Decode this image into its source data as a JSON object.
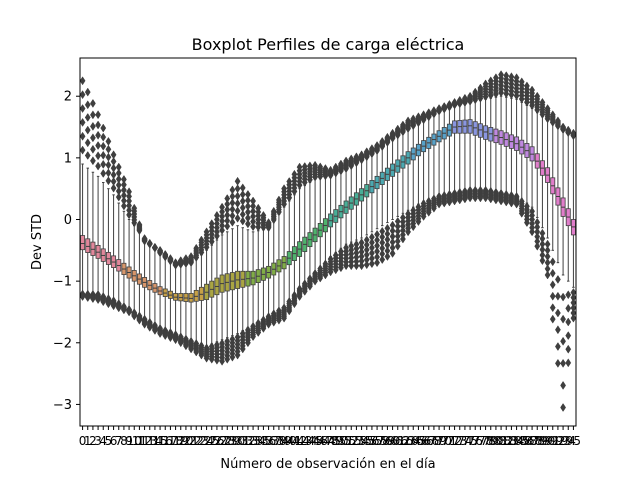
{
  "chart_data": {
    "type": "box",
    "title": "Boxplot Perfiles de carga eléctrica",
    "xlabel": "Número de observación en el día",
    "ylabel": "Dev STD",
    "x_start": 0,
    "x_end": 95,
    "ylim": [
      -3.35,
      2.62
    ],
    "yticks": [
      2,
      1,
      0,
      -1,
      -2,
      -3
    ],
    "ytick_labels": [
      "2",
      "1",
      "0",
      "−1",
      "−2",
      "−3"
    ],
    "grid": false,
    "legend": "none",
    "style": {
      "outlier_color": "#3f3f3f",
      "line_color": "#3f3f3f",
      "palette": [
        "#e1879b",
        "#d7966b",
        "#c7a147",
        "#aaa543",
        "#81ad47",
        "#4fb36d",
        "#49ae97",
        "#4ca9b1",
        "#58a2c9",
        "#8a96e0",
        "#c088e0",
        "#e07dca"
      ]
    },
    "boxes": [
      {
        "x": 0,
        "q1": -0.49,
        "median": -0.39,
        "q3": -0.26,
        "whisker_low": -1.2,
        "whisker_high": 0.9,
        "fliers_high": [
          1.9,
          2.25
        ],
        "fliers_low": [
          -1.25
        ]
      },
      {
        "x": 3,
        "q1": -0.63,
        "median": -0.53,
        "q3": -0.42,
        "whisker_low": -1.2,
        "whisker_high": 0.7,
        "fliers_high": [
          1.55,
          1.7
        ],
        "fliers_low": [
          -1.3
        ]
      },
      {
        "x": 6,
        "q1": -0.78,
        "median": -0.69,
        "q3": -0.59,
        "whisker_low": -1.3,
        "whisker_high": 0.4,
        "fliers_high": [
          1.05,
          0.8
        ],
        "fliers_low": [
          -1.4
        ]
      },
      {
        "x": 9,
        "q1": -0.95,
        "median": -0.86,
        "q3": -0.77,
        "whisker_low": -1.45,
        "whisker_high": 0.0,
        "fliers_high": [
          0.45
        ],
        "fliers_low": [
          -1.5
        ]
      },
      {
        "x": 12,
        "q1": -1.1,
        "median": -1.02,
        "q3": -0.94,
        "whisker_low": -1.6,
        "whisker_high": -0.3,
        "fliers_high": [
          -0.35
        ],
        "fliers_low": [
          -1.7
        ]
      },
      {
        "x": 15,
        "q1": -1.22,
        "median": -1.16,
        "q3": -1.09,
        "whisker_low": -1.75,
        "whisker_high": -0.55,
        "fliers_high": [
          -0.5
        ],
        "fliers_low": [
          -1.85
        ]
      },
      {
        "x": 18,
        "q1": -1.31,
        "median": -1.26,
        "q3": -1.2,
        "whisker_low": -1.85,
        "whisker_high": -0.75,
        "fliers_high": [
          -0.7
        ],
        "fliers_low": [
          -1.95
        ]
      },
      {
        "x": 21,
        "q1": -1.34,
        "median": -1.28,
        "q3": -1.2,
        "whisker_low": -1.95,
        "whisker_high": -0.72,
        "fliers_high": [
          -0.6
        ],
        "fliers_low": [
          -2.1
        ]
      },
      {
        "x": 24,
        "q1": -1.3,
        "median": -1.18,
        "q3": -1.05,
        "whisker_low": -2.05,
        "whisker_high": -0.5,
        "fliers_high": [
          -0.2
        ],
        "fliers_low": [
          -2.25
        ]
      },
      {
        "x": 27,
        "q1": -1.18,
        "median": -1.04,
        "q3": -0.9,
        "whisker_low": -1.95,
        "whisker_high": -0.25,
        "fliers_high": [
          0.2
        ],
        "fliers_low": [
          -2.3
        ]
      },
      {
        "x": 30,
        "q1": -1.12,
        "median": -0.98,
        "q3": -0.84,
        "whisker_low": -1.85,
        "whisker_high": -0.1,
        "fliers_high": [
          0.62
        ],
        "fliers_low": [
          -2.2
        ]
      },
      {
        "x": 33,
        "q1": -1.06,
        "median": -0.95,
        "q3": -0.84,
        "whisker_low": -1.7,
        "whisker_high": -0.2,
        "fliers_high": [
          0.3
        ],
        "fliers_low": [
          -1.9
        ]
      },
      {
        "x": 36,
        "q1": -0.95,
        "median": -0.86,
        "q3": -0.76,
        "whisker_low": -1.55,
        "whisker_high": -0.15,
        "fliers_high": [
          -0.05
        ],
        "fliers_low": [
          -1.7
        ]
      },
      {
        "x": 39,
        "q1": -0.8,
        "median": -0.7,
        "q3": -0.6,
        "whisker_low": -1.4,
        "whisker_high": 0.2,
        "fliers_high": [
          0.5
        ],
        "fliers_low": [
          -1.6
        ]
      },
      {
        "x": 42,
        "q1": -0.6,
        "median": -0.48,
        "q3": -0.36,
        "whisker_low": -1.1,
        "whisker_high": 0.5,
        "fliers_high": [
          0.85
        ],
        "fliers_low": [
          -1.25
        ]
      },
      {
        "x": 45,
        "q1": -0.36,
        "median": -0.25,
        "q3": -0.14,
        "whisker_low": -0.85,
        "whisker_high": 0.65,
        "fliers_high": [
          0.88
        ],
        "fliers_low": [
          -1.0
        ]
      },
      {
        "x": 48,
        "q1": -0.12,
        "median": -0.02,
        "q3": 0.09,
        "whisker_low": -0.6,
        "whisker_high": 0.7,
        "fliers_high": [
          0.8
        ],
        "fliers_low": [
          -0.85
        ]
      },
      {
        "x": 51,
        "q1": 0.1,
        "median": 0.2,
        "q3": 0.3,
        "whisker_low": -0.4,
        "whisker_high": 0.8,
        "fliers_high": [
          0.95
        ],
        "fliers_low": [
          -0.75
        ]
      },
      {
        "x": 54,
        "q1": 0.3,
        "median": 0.4,
        "q3": 0.5,
        "whisker_low": -0.3,
        "whisker_high": 0.95,
        "fliers_high": [
          1.05
        ],
        "fliers_low": [
          -0.75
        ]
      },
      {
        "x": 57,
        "q1": 0.5,
        "median": 0.6,
        "q3": 0.7,
        "whisker_low": -0.15,
        "whisker_high": 1.1,
        "fliers_high": [
          1.2
        ],
        "fliers_low": [
          -0.7
        ]
      },
      {
        "x": 60,
        "q1": 0.7,
        "median": 0.8,
        "q3": 0.9,
        "whisker_low": 0.0,
        "whisker_high": 1.3,
        "fliers_high": [
          1.4
        ],
        "fliers_low": [
          -0.55
        ]
      },
      {
        "x": 63,
        "q1": 0.9,
        "median": 1.0,
        "q3": 1.1,
        "whisker_low": 0.15,
        "whisker_high": 1.45,
        "fliers_high": [
          1.6
        ],
        "fliers_low": [
          -0.2
        ]
      },
      {
        "x": 66,
        "q1": 1.1,
        "median": 1.19,
        "q3": 1.28,
        "whisker_low": 0.3,
        "whisker_high": 1.6,
        "fliers_high": [
          1.7
        ],
        "fliers_low": [
          0.05
        ]
      },
      {
        "x": 69,
        "q1": 1.26,
        "median": 1.35,
        "q3": 1.44,
        "whisker_low": 0.4,
        "whisker_high": 1.75,
        "fliers_high": [
          1.8
        ],
        "fliers_low": [
          0.25
        ]
      },
      {
        "x": 72,
        "q1": 1.4,
        "median": 1.5,
        "q3": 1.6,
        "whisker_low": 0.45,
        "whisker_high": 1.85,
        "fliers_high": [
          1.9
        ],
        "fliers_low": [
          0.3
        ]
      },
      {
        "x": 75,
        "q1": 1.4,
        "median": 1.52,
        "q3": 1.62,
        "whisker_low": 0.5,
        "whisker_high": 1.9,
        "fliers_high": [
          2.0
        ],
        "fliers_low": [
          0.35
        ]
      },
      {
        "x": 78,
        "q1": 1.3,
        "median": 1.42,
        "q3": 1.52,
        "whisker_low": 0.5,
        "whisker_high": 1.95,
        "fliers_high": [
          2.2
        ],
        "fliers_low": [
          0.35
        ]
      },
      {
        "x": 81,
        "q1": 1.22,
        "median": 1.33,
        "q3": 1.44,
        "whisker_low": 0.45,
        "whisker_high": 2.0,
        "fliers_high": [
          2.35
        ],
        "fliers_low": [
          0.3
        ]
      },
      {
        "x": 84,
        "q1": 1.12,
        "median": 1.23,
        "q3": 1.34,
        "whisker_low": 0.4,
        "whisker_high": 1.95,
        "fliers_high": [
          2.3
        ],
        "fliers_low": [
          0.25
        ]
      },
      {
        "x": 87,
        "q1": 0.95,
        "median": 1.06,
        "q3": 1.18,
        "whisker_low": 0.2,
        "whisker_high": 1.8,
        "fliers_high": [
          2.1
        ],
        "fliers_low": [
          -0.2
        ]
      },
      {
        "x": 90,
        "q1": 0.6,
        "median": 0.72,
        "q3": 0.84,
        "whisker_low": -0.3,
        "whisker_high": 1.6,
        "fliers_high": [
          1.8
        ],
        "fliers_low": [
          -0.9
        ]
      },
      {
        "x": 93,
        "q1": 0.05,
        "median": 0.2,
        "q3": 0.35,
        "whisker_low": -0.9,
        "whisker_high": 1.45,
        "fliers_high": [
          1.5
        ],
        "fliers_low": [
          -2.75,
          -3.05
        ]
      },
      {
        "x": 95,
        "q1": -0.25,
        "median": -0.12,
        "q3": 0.0,
        "whisker_low": -1.1,
        "whisker_high": 1.35,
        "fliers_high": [
          1.4
        ],
        "fliers_low": [
          -1.6
        ]
      }
    ]
  }
}
